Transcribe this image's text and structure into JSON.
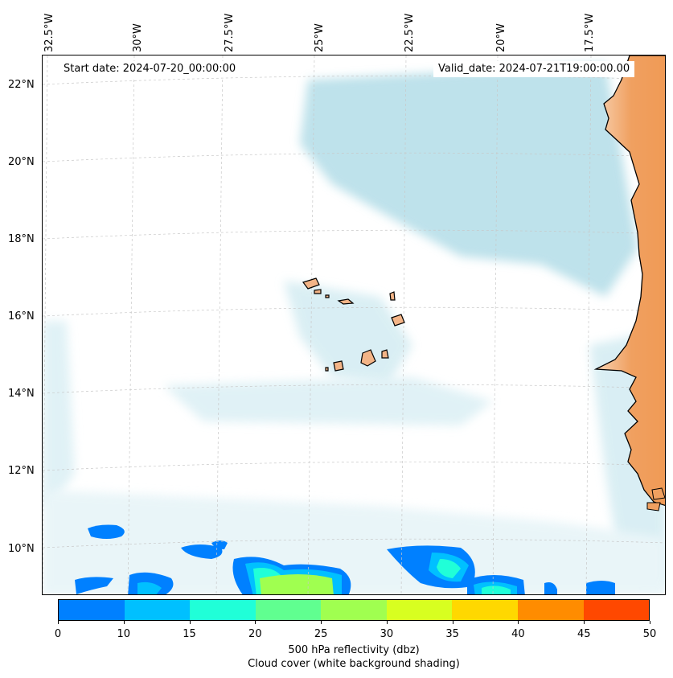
{
  "map": {
    "start_label": "Start date: 2024-07-20_00:00:00",
    "valid_label": "Valid_date: 2024-07-21T19:00:00.00",
    "lon_labels": [
      "32.5°W",
      "30°W",
      "27.5°W",
      "25°W",
      "22.5°W",
      "20°W",
      "17.5°W"
    ],
    "lat_labels": [
      "22°N",
      "20°N",
      "18°N",
      "16°N",
      "14°N",
      "12°N",
      "10°N"
    ],
    "colors": {
      "land": "#f0a060",
      "coast": "#000000",
      "cloud": "#a8d8e4",
      "grid": "#c8c8c8"
    }
  },
  "colorbar": {
    "ticks": [
      "0",
      "10",
      "15",
      "20",
      "25",
      "30",
      "35",
      "40",
      "45",
      "50"
    ],
    "colors": [
      "#0080ff",
      "#00c0ff",
      "#20ffd8",
      "#60ff90",
      "#a0ff50",
      "#d8ff20",
      "#ffd800",
      "#ff8c00",
      "#ff4800"
    ],
    "label_line1": "500 hPa reflectivity (dbz)",
    "label_line2": "Cloud cover (white background shading)"
  }
}
